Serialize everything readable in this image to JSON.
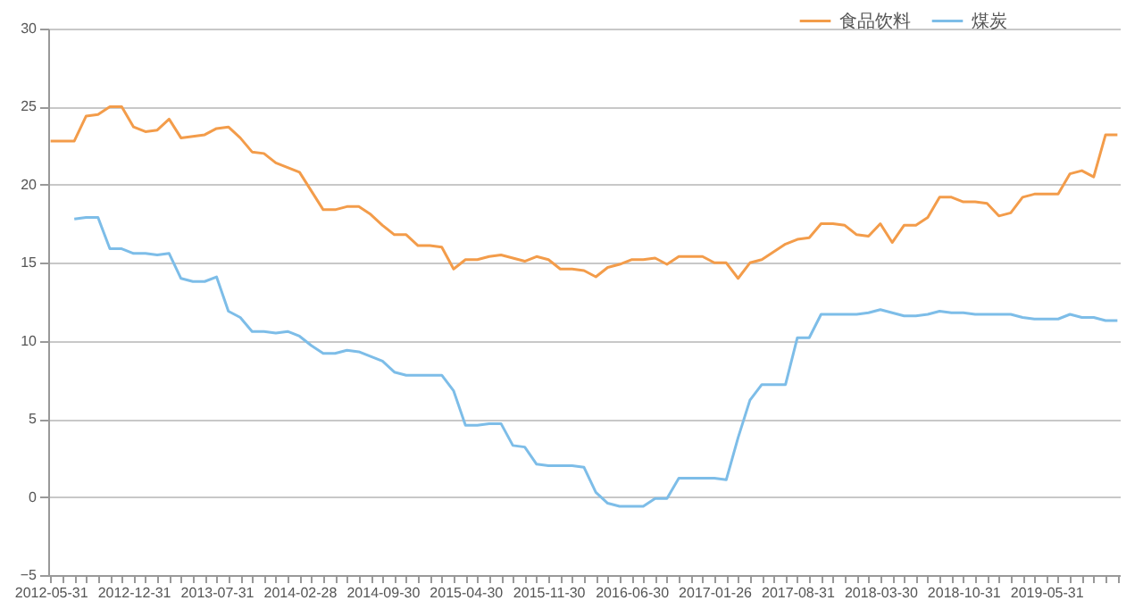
{
  "chart_data": {
    "type": "line",
    "categories": [
      "2012-05-31",
      null,
      null,
      null,
      null,
      null,
      null,
      "2012-12-31",
      null,
      null,
      null,
      null,
      null,
      null,
      "2013-07-31",
      null,
      null,
      null,
      null,
      null,
      null,
      "2014-02-28",
      null,
      null,
      null,
      null,
      null,
      null,
      "2014-09-30",
      null,
      null,
      null,
      null,
      null,
      null,
      "2015-04-30",
      null,
      null,
      null,
      null,
      null,
      null,
      "2015-11-30",
      null,
      null,
      null,
      null,
      null,
      null,
      "2016-06-30",
      null,
      null,
      null,
      null,
      null,
      null,
      "2017-01-26",
      null,
      null,
      null,
      null,
      null,
      null,
      "2017-08-31",
      null,
      null,
      null,
      null,
      null,
      null,
      "2018-03-30",
      null,
      null,
      null,
      null,
      null,
      null,
      "2018-10-31",
      null,
      null,
      null,
      null,
      null,
      null,
      "2019-05-31",
      null,
      null,
      null,
      null,
      null,
      null
    ],
    "series": [
      {
        "name": "食品饮料",
        "color": "#f39c4a",
        "values": [
          22.8,
          22.8,
          22.8,
          24.4,
          24.5,
          25.0,
          25.0,
          23.7,
          23.4,
          23.5,
          24.2,
          23.0,
          23.1,
          23.2,
          23.6,
          23.7,
          23.0,
          22.1,
          22.0,
          21.4,
          21.1,
          20.8,
          19.6,
          18.4,
          18.4,
          18.6,
          18.6,
          18.1,
          17.4,
          16.8,
          16.8,
          16.1,
          16.1,
          16.0,
          14.6,
          15.2,
          15.2,
          15.4,
          15.5,
          15.3,
          15.1,
          15.4,
          15.2,
          14.6,
          14.6,
          14.5,
          14.1,
          14.7,
          14.9,
          15.2,
          15.2,
          15.3,
          14.9,
          15.4,
          15.4,
          15.4,
          15.0,
          15.0,
          14.0,
          15.0,
          15.2,
          15.7,
          16.2,
          16.5,
          16.6,
          17.5,
          17.5,
          17.4,
          16.8,
          16.7,
          17.5,
          16.3,
          17.4,
          17.4,
          17.9,
          19.2,
          19.2,
          18.9,
          18.9,
          18.8,
          18.0,
          18.2,
          19.2,
          19.4,
          19.4,
          19.4,
          20.7,
          20.9,
          20.5,
          23.2,
          23.2
        ]
      },
      {
        "name": "煤炭",
        "color": "#7dbde8",
        "values": [
          null,
          null,
          17.8,
          17.9,
          17.9,
          15.9,
          15.9,
          15.6,
          15.6,
          15.5,
          15.6,
          14.0,
          13.8,
          13.8,
          14.1,
          11.9,
          11.5,
          10.6,
          10.6,
          10.5,
          10.6,
          10.3,
          9.7,
          9.2,
          9.2,
          9.4,
          9.3,
          9.0,
          8.7,
          8.0,
          7.8,
          7.8,
          7.8,
          7.8,
          6.8,
          4.6,
          4.6,
          4.7,
          4.7,
          3.3,
          3.2,
          2.1,
          2.0,
          2.0,
          2.0,
          1.9,
          0.3,
          -0.4,
          -0.6,
          -0.6,
          -0.6,
          -0.1,
          -0.1,
          1.2,
          1.2,
          1.2,
          1.2,
          1.1,
          3.8,
          6.2,
          7.2,
          7.2,
          7.2,
          10.2,
          10.2,
          11.7,
          11.7,
          11.7,
          11.7,
          11.8,
          12.0,
          11.8,
          11.6,
          11.6,
          11.7,
          11.9,
          11.8,
          11.8,
          11.7,
          11.7,
          11.7,
          11.7,
          11.5,
          11.4,
          11.4,
          11.4,
          11.7,
          11.5,
          11.5,
          11.3,
          11.3
        ]
      }
    ],
    "ylim": [
      -5,
      30
    ],
    "yticks": [
      -5,
      0,
      5,
      10,
      15,
      20,
      25,
      30
    ],
    "grid": "y",
    "legend": "top right",
    "marker": "none",
    "line_style": "solid"
  }
}
